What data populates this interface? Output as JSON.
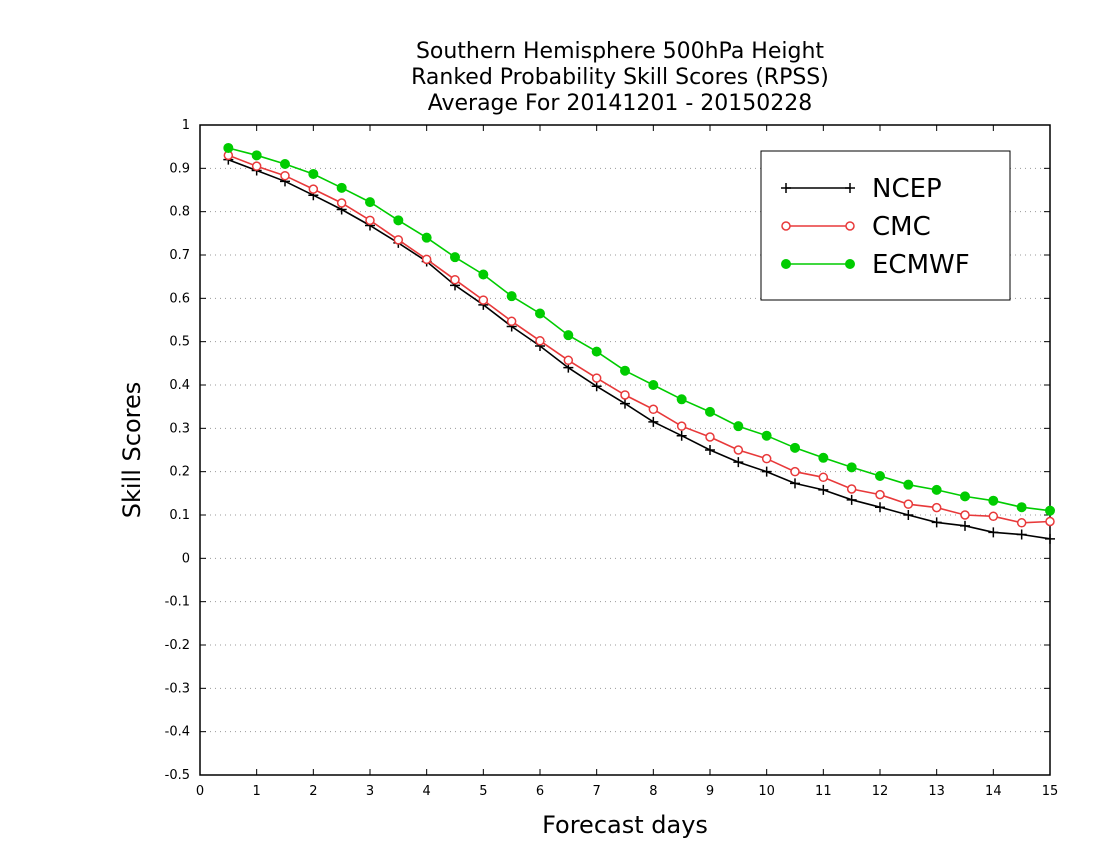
{
  "chart_data": {
    "type": "line",
    "title_lines": [
      "Southern Hemisphere 500hPa Height",
      "Ranked Probability Skill Scores (RPSS)",
      "Average For 20141201 - 20150228"
    ],
    "xlabel": "Forecast days",
    "ylabel": "Skill Scores",
    "xlim": [
      0,
      15
    ],
    "ylim": [
      -0.5,
      1
    ],
    "x_ticks": [
      0,
      1,
      2,
      3,
      4,
      5,
      6,
      7,
      8,
      9,
      10,
      11,
      12,
      13,
      14,
      15
    ],
    "x_tick_labels": [
      "0",
      "1",
      "2",
      "3",
      "4",
      "5",
      "6",
      "7",
      "8",
      "9",
      "10",
      "11",
      "12",
      "13",
      "14",
      "15"
    ],
    "y_ticks": [
      -0.5,
      -0.4,
      -0.3,
      -0.2,
      -0.1,
      0,
      0.1,
      0.2,
      0.3,
      0.4,
      0.5,
      0.6,
      0.7,
      0.8,
      0.9,
      1
    ],
    "y_tick_labels": [
      "-0.5",
      "-0.4",
      "-0.3",
      "-0.2",
      "-0.1",
      "0",
      "0.1",
      "0.2",
      "0.3",
      "0.4",
      "0.5",
      "0.6",
      "0.7",
      "0.8",
      "0.9",
      "1"
    ],
    "grid": "horizontal dotted",
    "legend_position": "top-right",
    "x": [
      0.5,
      1,
      1.5,
      2,
      2.5,
      3,
      3.5,
      4,
      4.5,
      5,
      5.5,
      6,
      6.5,
      7,
      7.5,
      8,
      8.5,
      9,
      9.5,
      10,
      10.5,
      11,
      11.5,
      12,
      12.5,
      13,
      13.5,
      14,
      14.5,
      15
    ],
    "series": [
      {
        "name": "NCEP",
        "color": "#000000",
        "marker": "plus",
        "values": [
          0.92,
          0.895,
          0.87,
          0.838,
          0.805,
          0.768,
          0.728,
          0.685,
          0.63,
          0.585,
          0.535,
          0.49,
          0.44,
          0.397,
          0.357,
          0.315,
          0.283,
          0.25,
          0.222,
          0.2,
          0.173,
          0.158,
          0.135,
          0.118,
          0.1,
          0.083,
          0.075,
          0.06,
          0.055,
          0.045
        ]
      },
      {
        "name": "CMC",
        "color": "#e8393a",
        "marker": "open-circle",
        "values": [
          0.93,
          0.905,
          0.883,
          0.852,
          0.82,
          0.78,
          0.735,
          0.69,
          0.643,
          0.596,
          0.547,
          0.502,
          0.457,
          0.416,
          0.377,
          0.344,
          0.305,
          0.28,
          0.25,
          0.23,
          0.2,
          0.187,
          0.16,
          0.147,
          0.125,
          0.117,
          0.1,
          0.097,
          0.082,
          0.085
        ]
      },
      {
        "name": "ECMWF",
        "color": "#00cc00",
        "marker": "filled-circle",
        "values": [
          0.947,
          0.93,
          0.91,
          0.887,
          0.855,
          0.822,
          0.78,
          0.74,
          0.695,
          0.655,
          0.605,
          0.565,
          0.515,
          0.477,
          0.433,
          0.4,
          0.367,
          0.338,
          0.305,
          0.283,
          0.255,
          0.232,
          0.21,
          0.19,
          0.17,
          0.158,
          0.143,
          0.133,
          0.118,
          0.11
        ]
      }
    ]
  }
}
